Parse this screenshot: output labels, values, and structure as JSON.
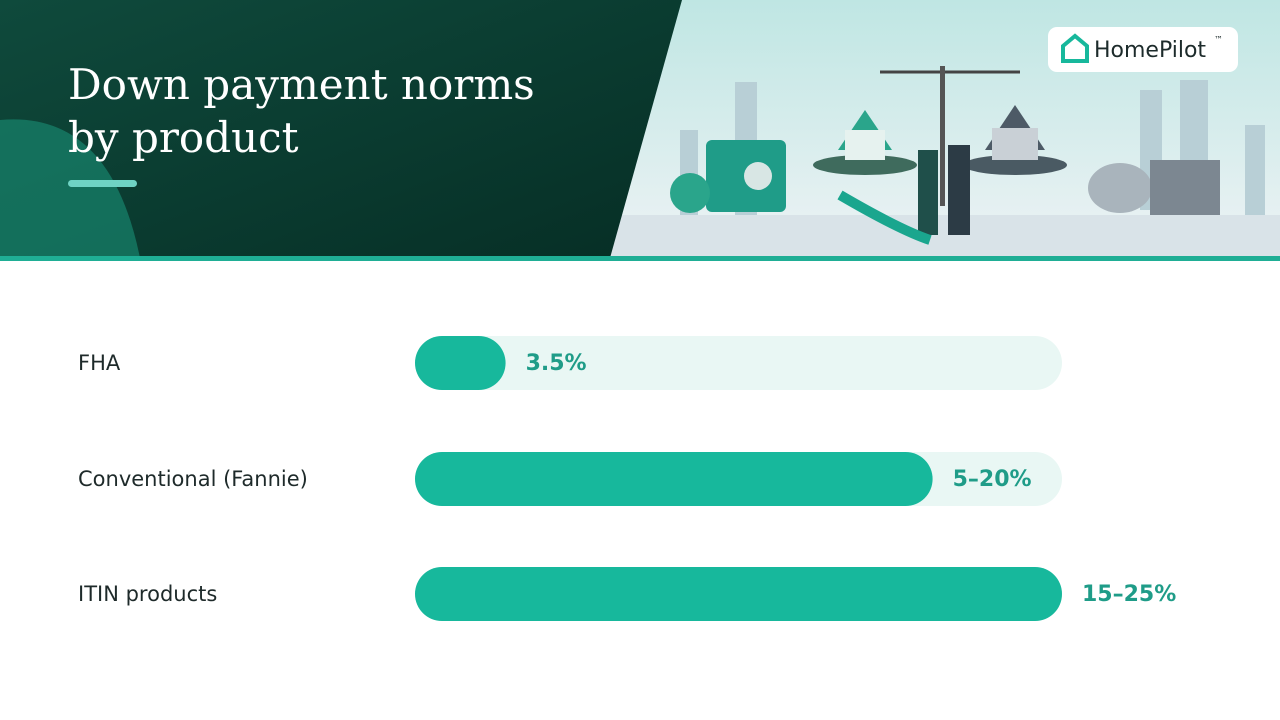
{
  "brand": {
    "name": "HomePilot",
    "mark": "™"
  },
  "chart_data": {
    "type": "hbar",
    "title": "Down payment norms by product",
    "categories": [
      "FHA",
      "Conventional (Fannie)",
      "ITIN products"
    ],
    "values": [
      3.5,
      20,
      25
    ],
    "value_labels": [
      "3.5%",
      "5–20%",
      "15–25%"
    ],
    "color": "#17b89c",
    "track_color": "#e9f7f4",
    "label_color": "#1f9c88",
    "xlim": [
      0,
      25
    ]
  }
}
